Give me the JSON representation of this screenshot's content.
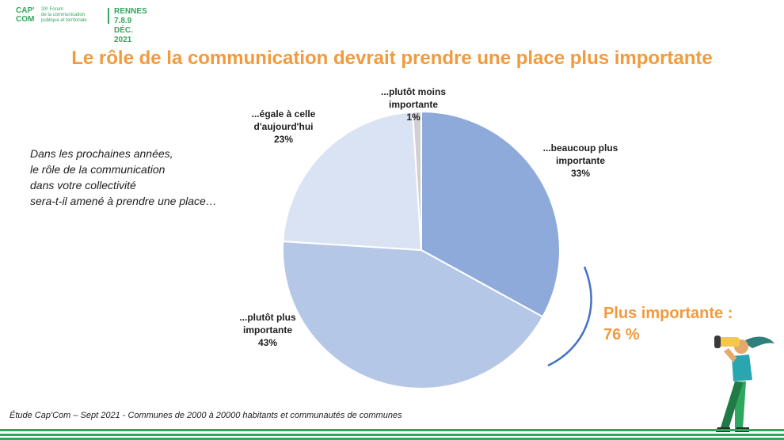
{
  "header": {
    "logo_line1": "CAP'",
    "logo_line2": "COM",
    "forum_line1": "33ᵉ Forum",
    "forum_line2": "de la communication",
    "forum_line3": "publique et territoriale",
    "city": "RENNES",
    "dates": "7.8.9 DÉC. 2021"
  },
  "title": "Le rôle de la communication devrait prendre une place plus importante",
  "question": [
    "Dans les prochaines années,",
    "le rôle de la communication",
    "dans votre collectivité",
    "sera-t-il amené à prendre une place…"
  ],
  "total": {
    "line1": "Plus importante :",
    "line2": "76 %"
  },
  "source": "Étude Cap'Com – Sept 2021 - Communes de 2000 à 20000 habitants et communautés de communes",
  "chart_data": {
    "type": "pie",
    "start_angle_deg": 0,
    "direction": "clockwise",
    "slices": [
      {
        "label_line1": "...beaucoup plus",
        "label_line2": "importante",
        "value": 33,
        "value_label": "33%",
        "color": "#8eaadb"
      },
      {
        "label_line1": "...plutôt plus",
        "label_line2": "importante",
        "value": 43,
        "value_label": "43%",
        "color": "#b4c7e7"
      },
      {
        "label_line1": "...égale à celle",
        "label_line2": "d'aujourd'hui",
        "value": 23,
        "value_label": "23%",
        "color": "#dae3f3"
      },
      {
        "label_line1": "...plutôt moins",
        "label_line2": "importante",
        "value": 1,
        "value_label": "1%",
        "color": "#d0d0d0"
      }
    ],
    "bracket_color": "#4472c4"
  },
  "colors": {
    "accent_orange": "#f29a3c",
    "brand_green": "#2fa85f"
  }
}
